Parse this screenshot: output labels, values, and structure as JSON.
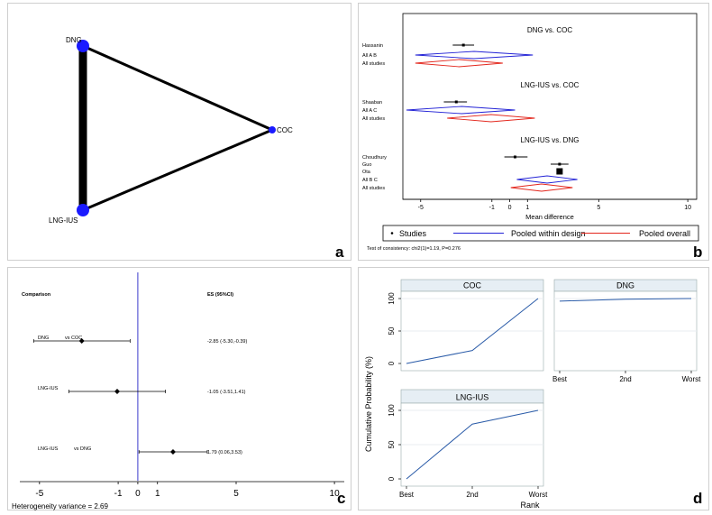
{
  "panel_a": {
    "label": "a",
    "nodes": [
      {
        "id": "DNG",
        "label": "DNG"
      },
      {
        "id": "COC",
        "label": "COC"
      },
      {
        "id": "LNG-IUS",
        "label": "LNG-IUS"
      }
    ],
    "edges": [
      {
        "from": "DNG",
        "to": "COC",
        "weight": 1
      },
      {
        "from": "DNG",
        "to": "LNG-IUS",
        "weight": 3
      },
      {
        "from": "LNG-IUS",
        "to": "COC",
        "weight": 1
      }
    ],
    "node_color": "#1a1aff"
  },
  "panel_b": {
    "label": "b",
    "sections": [
      {
        "title": "DNG vs. COC",
        "rows": [
          {
            "label": "Hassanin",
            "kind": "study",
            "mean": -2.6,
            "lo": -3.2,
            "hi": -2.0,
            "size": 1
          },
          {
            "label": "All A B",
            "kind": "pooled_design",
            "mean": -2.0,
            "lo": -5.3,
            "hi": 1.3
          },
          {
            "label": "All studies",
            "kind": "pooled_overall",
            "mean": -2.85,
            "lo": -5.3,
            "hi": -0.39
          }
        ]
      },
      {
        "title": "LNG-IUS vs. COC",
        "rows": [
          {
            "label": "Shaaban",
            "kind": "study",
            "mean": -3.0,
            "lo": -3.7,
            "hi": -2.4,
            "size": 1
          },
          {
            "label": "All A C",
            "kind": "pooled_design",
            "mean": -2.7,
            "lo": -5.8,
            "hi": 0.3
          },
          {
            "label": "All studies",
            "kind": "pooled_overall",
            "mean": -1.05,
            "lo": -3.51,
            "hi": 1.41
          }
        ]
      },
      {
        "title": "LNG-IUS vs. DNG",
        "rows": [
          {
            "label": "Choudhury",
            "kind": "study",
            "mean": 0.3,
            "lo": -0.3,
            "hi": 1.0,
            "size": 1
          },
          {
            "label": "Guo",
            "kind": "study",
            "mean": 2.8,
            "lo": 2.3,
            "hi": 3.3,
            "size": 1
          },
          {
            "label": "Ota",
            "kind": "study",
            "mean": 2.8,
            "lo": 2.7,
            "hi": 2.9,
            "size": 3
          },
          {
            "label": "All B C",
            "kind": "pooled_design",
            "mean": 2.1,
            "lo": 0.4,
            "hi": 3.8
          },
          {
            "label": "All studies",
            "kind": "pooled_overall",
            "mean": 1.79,
            "lo": 0.06,
            "hi": 3.53
          }
        ]
      }
    ],
    "xaxis": {
      "label": "Mean difference",
      "ticks": [
        -5,
        -1,
        0,
        1,
        5,
        10
      ],
      "range": [
        -6,
        10.5
      ]
    },
    "legend": [
      "Studies",
      "Pooled within design",
      "Pooled overall"
    ],
    "footnote": "Test of consistency: chi2(1)=1.19, P=0.276",
    "colors": {
      "design": "#2323d6",
      "overall": "#e3261c"
    }
  },
  "panel_c": {
    "label": "c",
    "header_left": "Comparison",
    "header_right": "ES (95%CI)",
    "rows": [
      {
        "left": "DNG",
        "vs": "vs COC",
        "es": -2.85,
        "lo": -5.3,
        "hi": -0.39,
        "text": "-2.85 (-5.30,-0.39)"
      },
      {
        "left": "LNG-IUS",
        "vs": "",
        "es": -1.05,
        "lo": -3.51,
        "hi": 1.41,
        "text": "-1.05 (-3.51,1.41)"
      },
      {
        "left": "LNG-IUS",
        "vs": "vs DNG",
        "es": 1.79,
        "lo": 0.06,
        "hi": 3.53,
        "text": "1.79 (0.06,3.53)"
      }
    ],
    "xaxis": {
      "ticks": [
        "-5",
        "-1",
        "0",
        "1",
        "5",
        "10"
      ],
      "tick_values": [
        -5,
        -1,
        0,
        1,
        5,
        10
      ],
      "range": [
        -6,
        10.5
      ]
    },
    "footnote": "Heterogeneity variance = 2.69",
    "ref_line_color": "#3a3acc"
  },
  "panel_d": {
    "label": "d",
    "ylabel": "Cumulative Probability (%)",
    "xlabel": "Rank",
    "x_ticks": [
      "Best",
      "2nd",
      "Worst"
    ],
    "y_ticks": [
      "0",
      "50",
      "100"
    ],
    "plots": [
      {
        "title": "COC",
        "values": [
          0,
          20,
          100
        ]
      },
      {
        "title": "DNG",
        "values": [
          96,
          99,
          100
        ]
      },
      {
        "title": "LNG-IUS",
        "values": [
          0,
          80,
          100
        ]
      }
    ],
    "line_color": "#2a5ba8",
    "header_color": "#e6eef4"
  },
  "chart_data": [
    {
      "type": "network",
      "title": "",
      "nodes": [
        "DNG",
        "COC",
        "LNG-IUS"
      ],
      "edges": [
        [
          "DNG",
          "COC",
          1
        ],
        [
          "DNG",
          "LNG-IUS",
          3
        ],
        [
          "LNG-IUS",
          "COC",
          1
        ]
      ]
    },
    {
      "type": "forest",
      "xlabel": "Mean difference",
      "xlim": [
        -6,
        10.5
      ],
      "groups": [
        "DNG vs. COC",
        "LNG-IUS vs. COC",
        "LNG-IUS vs. DNG"
      ]
    },
    {
      "type": "forest",
      "xlabel": "",
      "xlim": [
        -6,
        10.5
      ],
      "comparisons": [
        "DNG vs COC",
        "LNG-IUS vs COC",
        "LNG-IUS vs DNG"
      ],
      "es": [
        -2.85,
        -1.05,
        1.79
      ],
      "ci_low": [
        -5.3,
        -3.51,
        0.06
      ],
      "ci_high": [
        -0.39,
        1.41,
        3.53
      ]
    },
    {
      "type": "line",
      "xlabel": "Rank",
      "ylabel": "Cumulative Probability (%)",
      "categories": [
        "Best",
        "2nd",
        "Worst"
      ],
      "ylim": [
        0,
        100
      ],
      "series": [
        {
          "name": "COC",
          "values": [
            0,
            20,
            100
          ]
        },
        {
          "name": "DNG",
          "values": [
            96,
            99,
            100
          ]
        },
        {
          "name": "LNG-IUS",
          "values": [
            0,
            80,
            100
          ]
        }
      ]
    }
  ]
}
